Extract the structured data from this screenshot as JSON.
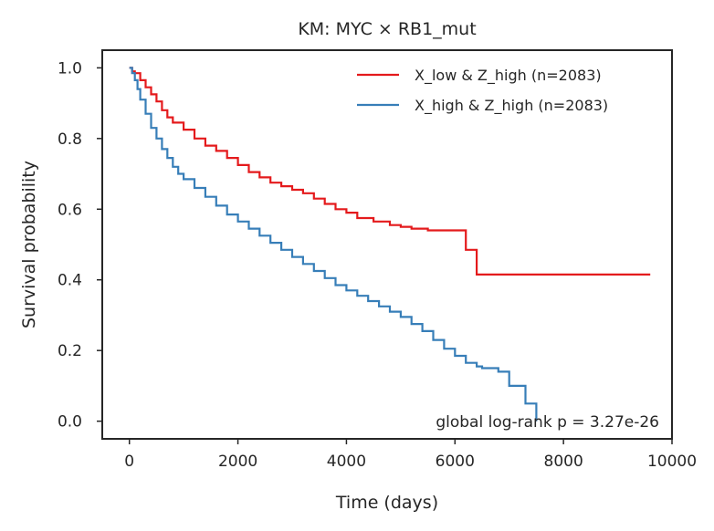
{
  "chart_data": {
    "type": "line",
    "title": "KM: MYC × RB1_mut",
    "xlabel": "Time (days)",
    "ylabel": "Survival probability",
    "xlim": [
      -500,
      10000
    ],
    "ylim": [
      -0.05,
      1.05
    ],
    "xticks": [
      0,
      2000,
      4000,
      6000,
      8000,
      10000
    ],
    "xtick_labels": [
      "0",
      "2000",
      "4000",
      "6000",
      "8000",
      "10000"
    ],
    "yticks": [
      0.0,
      0.2,
      0.4,
      0.6,
      0.8,
      1.0
    ],
    "ytick_labels": [
      "0.0",
      "0.2",
      "0.4",
      "0.6",
      "0.8",
      "1.0"
    ],
    "grid": false,
    "legend_position": "top-right",
    "annotation": "global log-rank p = 3.27e-26",
    "series": [
      {
        "name": "X_low & Z_high (n=2083)",
        "color": "#e41a1c",
        "step": true,
        "points": [
          [
            0,
            1.0
          ],
          [
            50,
            0.99
          ],
          [
            100,
            0.985
          ],
          [
            200,
            0.965
          ],
          [
            300,
            0.945
          ],
          [
            400,
            0.925
          ],
          [
            500,
            0.905
          ],
          [
            600,
            0.88
          ],
          [
            700,
            0.86
          ],
          [
            800,
            0.845
          ],
          [
            1000,
            0.825
          ],
          [
            1200,
            0.8
          ],
          [
            1400,
            0.78
          ],
          [
            1600,
            0.765
          ],
          [
            1800,
            0.745
          ],
          [
            2000,
            0.725
          ],
          [
            2200,
            0.705
          ],
          [
            2400,
            0.69
          ],
          [
            2600,
            0.675
          ],
          [
            2800,
            0.665
          ],
          [
            3000,
            0.655
          ],
          [
            3200,
            0.645
          ],
          [
            3400,
            0.63
          ],
          [
            3600,
            0.615
          ],
          [
            3800,
            0.6
          ],
          [
            4000,
            0.59
          ],
          [
            4200,
            0.575
          ],
          [
            4500,
            0.565
          ],
          [
            4800,
            0.555
          ],
          [
            5000,
            0.55
          ],
          [
            5200,
            0.545
          ],
          [
            5500,
            0.54
          ],
          [
            5800,
            0.54
          ],
          [
            6100,
            0.54
          ],
          [
            6200,
            0.485
          ],
          [
            6400,
            0.415
          ],
          [
            7000,
            0.415
          ],
          [
            8000,
            0.415
          ],
          [
            9000,
            0.415
          ],
          [
            9600,
            0.415
          ]
        ]
      },
      {
        "name": "X_high & Z_high (n=2083)",
        "color": "#377eb8",
        "step": true,
        "points": [
          [
            0,
            1.0
          ],
          [
            50,
            0.985
          ],
          [
            100,
            0.965
          ],
          [
            150,
            0.94
          ],
          [
            200,
            0.91
          ],
          [
            300,
            0.87
          ],
          [
            400,
            0.83
          ],
          [
            500,
            0.8
          ],
          [
            600,
            0.77
          ],
          [
            700,
            0.745
          ],
          [
            800,
            0.72
          ],
          [
            900,
            0.7
          ],
          [
            1000,
            0.685
          ],
          [
            1200,
            0.66
          ],
          [
            1400,
            0.635
          ],
          [
            1600,
            0.61
          ],
          [
            1800,
            0.585
          ],
          [
            2000,
            0.565
          ],
          [
            2200,
            0.545
          ],
          [
            2400,
            0.525
          ],
          [
            2600,
            0.505
          ],
          [
            2800,
            0.485
          ],
          [
            3000,
            0.465
          ],
          [
            3200,
            0.445
          ],
          [
            3400,
            0.425
          ],
          [
            3600,
            0.405
          ],
          [
            3800,
            0.385
          ],
          [
            4000,
            0.37
          ],
          [
            4200,
            0.355
          ],
          [
            4400,
            0.34
          ],
          [
            4600,
            0.325
          ],
          [
            4800,
            0.31
          ],
          [
            5000,
            0.295
          ],
          [
            5200,
            0.275
          ],
          [
            5400,
            0.255
          ],
          [
            5600,
            0.23
          ],
          [
            5800,
            0.205
          ],
          [
            6000,
            0.185
          ],
          [
            6200,
            0.165
          ],
          [
            6400,
            0.155
          ],
          [
            6500,
            0.15
          ],
          [
            6800,
            0.14
          ],
          [
            7000,
            0.1
          ],
          [
            7300,
            0.05
          ],
          [
            7500,
            0.0
          ]
        ]
      }
    ]
  }
}
